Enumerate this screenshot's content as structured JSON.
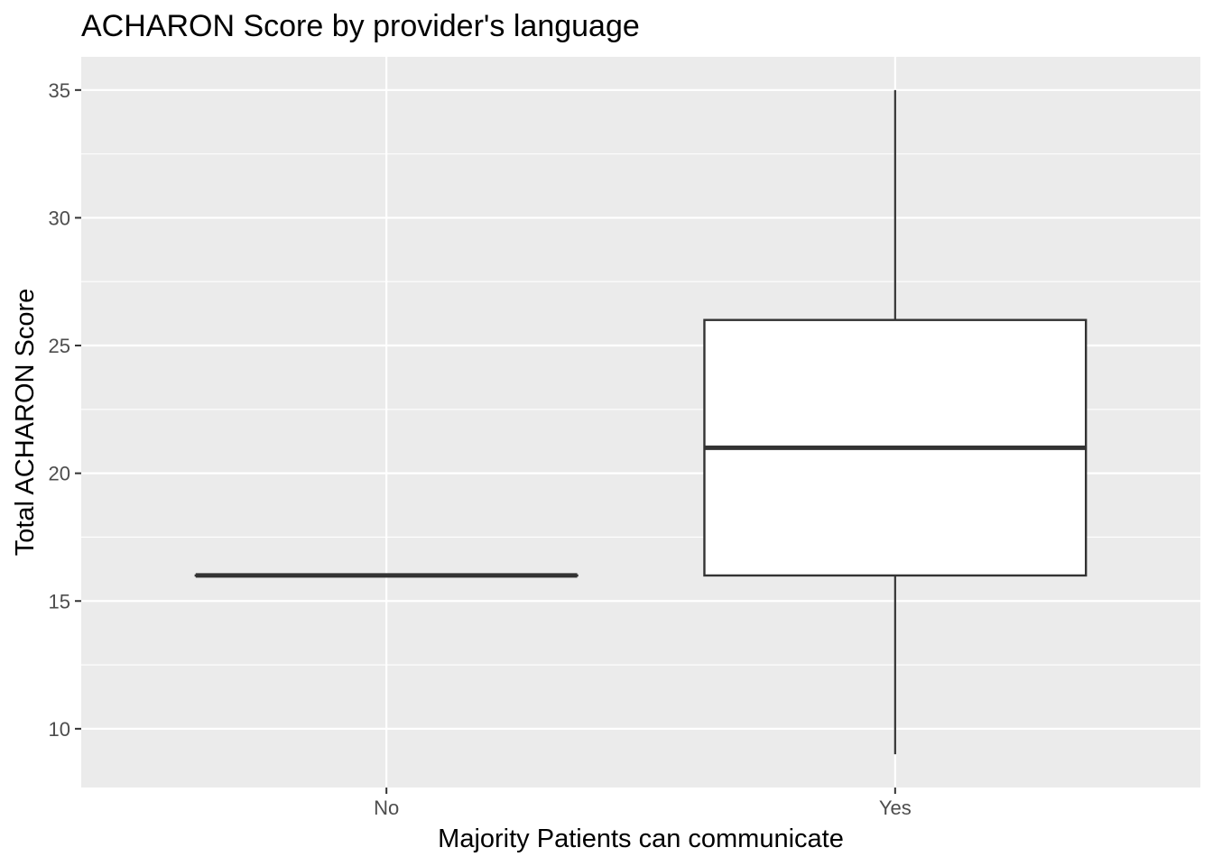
{
  "chart_data": {
    "type": "box",
    "title": "ACHARON Score by provider's language",
    "xlabel": "Majority Patients can communicate",
    "ylabel": "Total ACHARON Score",
    "categories": [
      "No",
      "Yes"
    ],
    "yticks": [
      10,
      15,
      20,
      25,
      30,
      35
    ],
    "ylim": [
      7.7,
      36.3
    ],
    "grid": true,
    "boxes": [
      {
        "category": "No",
        "min": 16,
        "q1": 16,
        "median": 16,
        "q3": 16,
        "max": 16
      },
      {
        "category": "Yes",
        "min": 9,
        "q1": 16,
        "median": 21,
        "q3": 26,
        "max": 35
      }
    ],
    "colors": {
      "panel_background": "#ebebeb",
      "grid": "#ffffff",
      "box_fill": "#ffffff",
      "box_stroke": "#333333",
      "tick": "#333333"
    }
  }
}
